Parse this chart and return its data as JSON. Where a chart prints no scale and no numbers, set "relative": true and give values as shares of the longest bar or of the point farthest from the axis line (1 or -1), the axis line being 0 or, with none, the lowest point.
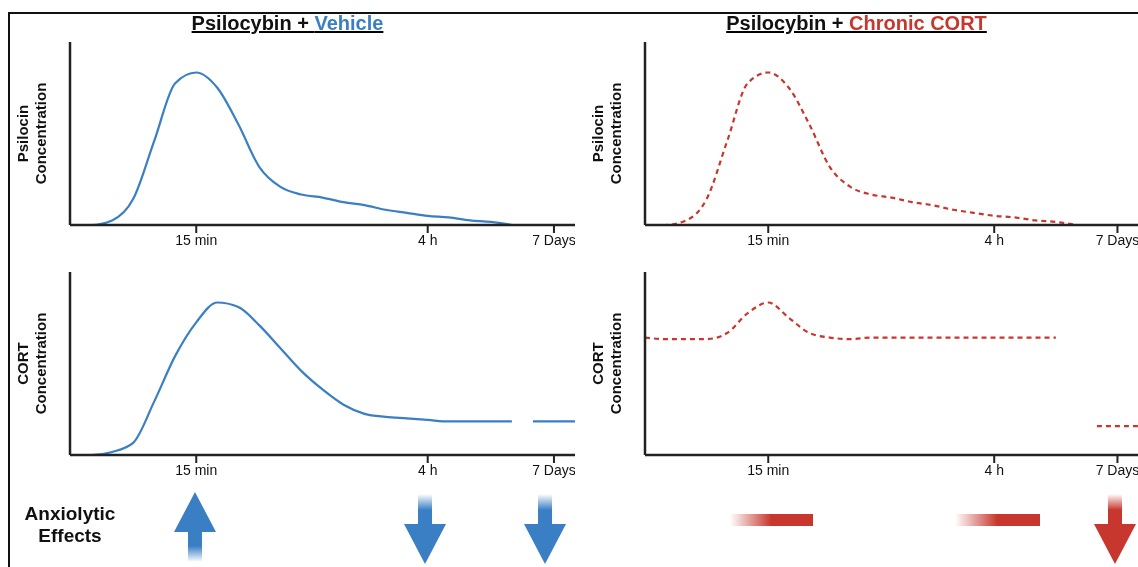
{
  "chart_data": [
    {
      "type": "line",
      "title": "Psilocybin + Vehicle",
      "ylabel": "Psilocin Concentration",
      "relative": true,
      "marker": "none",
      "line_style": "solid",
      "tick_labels": "x",
      "categories": [
        null,
        null,
        null,
        null,
        null,
        null,
        "15 min",
        null,
        null,
        null,
        null,
        null,
        null,
        null,
        null,
        null,
        null,
        "4 h",
        null,
        null,
        null,
        null,
        null,
        "7 Days",
        null
      ],
      "series": [
        {
          "color": "#3a7fc4",
          "values": [
            0,
            0,
            0.03,
            0.17,
            0.55,
            0.93,
            1,
            0.9,
            0.66,
            0.38,
            0.25,
            0.2,
            0.18,
            0.15,
            0.13,
            0.1,
            0.08,
            0.06,
            0.05,
            0.03,
            0.02,
            0,
            null,
            null,
            null
          ]
        }
      ]
    },
    {
      "type": "line",
      "title": "Psilocybin + Chronic CORT",
      "ylabel": "Psilocin Concentration",
      "relative": true,
      "marker": "none",
      "line_style": "dashed",
      "tick_labels": "x",
      "categories": [
        null,
        null,
        null,
        null,
        null,
        null,
        "15 min",
        null,
        null,
        null,
        null,
        null,
        null,
        null,
        null,
        null,
        null,
        "4 h",
        null,
        null,
        null,
        null,
        null,
        "7 Days",
        null
      ],
      "series": [
        {
          "color": "#c8372d",
          "values": [
            0,
            0,
            0.03,
            0.17,
            0.55,
            0.93,
            1,
            0.9,
            0.66,
            0.38,
            0.25,
            0.2,
            0.18,
            0.15,
            0.13,
            0.1,
            0.08,
            0.06,
            0.05,
            0.03,
            0.02,
            0,
            null,
            null,
            null
          ]
        }
      ]
    },
    {
      "type": "line",
      "ylabel": "CORT Concentration",
      "relative": true,
      "marker": "none",
      "line_style": "solid",
      "tick_labels": "x",
      "annotations": [
        "Anxiolytic Effects"
      ],
      "categories": [
        null,
        null,
        null,
        null,
        null,
        null,
        "15 min",
        null,
        null,
        null,
        null,
        null,
        null,
        null,
        null,
        null,
        null,
        "4 h",
        null,
        null,
        null,
        null,
        null,
        "7 Days",
        null
      ],
      "series": [
        {
          "color": "#3a7fc4",
          "values": [
            0,
            0,
            0.02,
            0.08,
            0.35,
            0.65,
            0.87,
            1,
            0.97,
            0.85,
            0.7,
            0.55,
            0.43,
            0.33,
            0.27,
            0.25,
            0.24,
            0.23,
            0.22,
            0.22,
            0.22,
            0.22,
            null,
            null,
            null
          ]
        },
        {
          "color": "#3a7fc4",
          "values": [
            null,
            null,
            null,
            null,
            null,
            null,
            null,
            null,
            null,
            null,
            null,
            null,
            null,
            null,
            null,
            null,
            null,
            null,
            null,
            null,
            null,
            null,
            0.22,
            0.22,
            0.22
          ]
        }
      ]
    },
    {
      "type": "line",
      "ylabel": "CORT Concentration",
      "relative": true,
      "marker": "none",
      "line_style": "dashed",
      "tick_labels": "x",
      "categories": [
        null,
        null,
        null,
        null,
        null,
        null,
        "15 min",
        null,
        null,
        null,
        null,
        null,
        null,
        null,
        null,
        null,
        null,
        "4 h",
        null,
        null,
        null,
        null,
        null,
        "7 Days",
        null
      ],
      "series": [
        {
          "color": "#c8372d",
          "values": [
            0.77,
            0.76,
            0.76,
            0.76,
            0.8,
            0.93,
            1,
            0.9,
            0.8,
            0.77,
            0.76,
            0.77,
            0.77,
            0.77,
            0.77,
            0.77,
            0.77,
            0.77,
            0.77,
            0.77,
            0.77,
            null,
            null,
            null,
            null
          ]
        },
        {
          "color": "#c8372d",
          "values": [
            null,
            null,
            null,
            null,
            null,
            null,
            null,
            null,
            null,
            null,
            null,
            null,
            null,
            null,
            null,
            null,
            null,
            null,
            null,
            null,
            null,
            null,
            0.19,
            0.19,
            0.19
          ]
        }
      ]
    }
  ]
}
